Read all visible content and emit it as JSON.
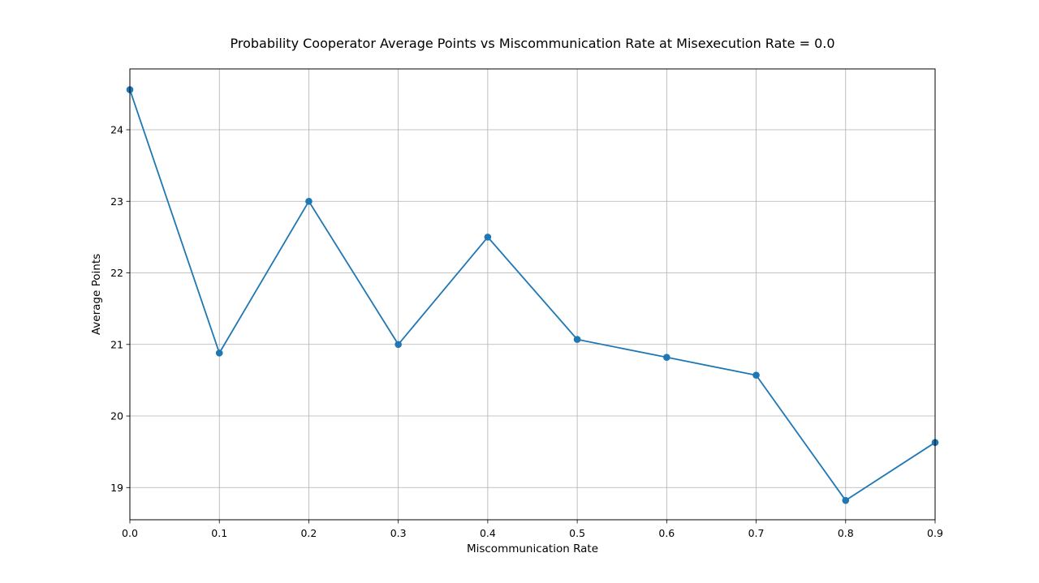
{
  "chart_data": {
    "type": "line",
    "title": "Probability Cooperator Average Points vs Miscommunication Rate at Misexecution Rate = 0.0",
    "xlabel": "Miscommunication Rate",
    "ylabel": "Average Points",
    "xlim": [
      0.0,
      0.9
    ],
    "ylim": [
      18.55,
      24.85
    ],
    "grid": true,
    "marker": "circle",
    "xticks": [
      "0.0",
      "0.1",
      "0.2",
      "0.3",
      "0.4",
      "0.5",
      "0.6",
      "0.7",
      "0.8",
      "0.9"
    ],
    "yticks": [
      "19",
      "20",
      "21",
      "22",
      "23",
      "24"
    ],
    "x": [
      0.0,
      0.1,
      0.2,
      0.3,
      0.4,
      0.5,
      0.6,
      0.7,
      0.8,
      0.9
    ],
    "series": [
      {
        "color": "#1f77b4",
        "values": [
          24.56,
          20.88,
          23.0,
          21.0,
          22.5,
          21.07,
          20.82,
          20.57,
          18.82,
          19.63
        ]
      }
    ]
  }
}
